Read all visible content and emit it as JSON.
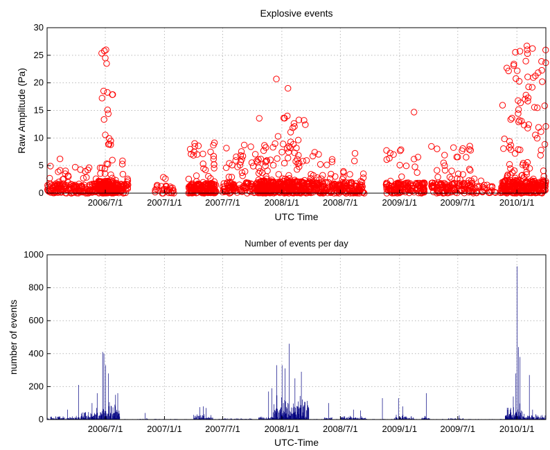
{
  "chart_data": [
    {
      "type": "scatter",
      "title": "Explosive events",
      "xlabel": "UTC Time",
      "ylabel": "Raw Amplitude (Pa)",
      "ylim": [
        0,
        30
      ],
      "yticks": [
        0,
        5,
        10,
        15,
        20,
        25,
        30
      ],
      "xlim": [
        "2006-01-01",
        "2010-04-01"
      ],
      "xticks": [
        "2006/7/1",
        "2007/1/1",
        "2007/7/1",
        "2008/1/1",
        "2008/7/1",
        "2009/1/1",
        "2009/7/1",
        "2010/1/1"
      ],
      "grid": true,
      "marker": "open-circle",
      "color": "#ff0000",
      "clusters": [
        {
          "from": "2006-01-01",
          "to": "2006-08-10",
          "n": 230,
          "max": 5,
          "tail": 1.8
        },
        {
          "from": "2006-06-10",
          "to": "2006-07-25",
          "n": 160,
          "max": 26,
          "tail": 2.2
        },
        {
          "from": "2006-08-01",
          "to": "2006-09-10",
          "n": 60,
          "max": 6,
          "tail": 1.7
        },
        {
          "from": "2006-12-01",
          "to": "2007-01-31",
          "n": 30,
          "max": 3.5,
          "tail": 1.5
        },
        {
          "from": "2007-03-15",
          "to": "2007-06-10",
          "n": 180,
          "max": 9.3,
          "tail": 1.8
        },
        {
          "from": "2007-07-01",
          "to": "2007-12-01",
          "n": 160,
          "max": 8.8,
          "tail": 2.0
        },
        {
          "from": "2007-10-20",
          "to": "2008-03-15",
          "n": 320,
          "max": 14,
          "tail": 2.2
        },
        {
          "from": "2008-03-15",
          "to": "2008-09-15",
          "n": 240,
          "max": 7.5,
          "tail": 2.0
        },
        {
          "from": "2008-11-20",
          "to": "2009-03-20",
          "n": 150,
          "max": 8.2,
          "tail": 1.9
        },
        {
          "from": "2009-04-10",
          "to": "2009-08-15",
          "n": 140,
          "max": 9.3,
          "tail": 1.9
        },
        {
          "from": "2009-08-15",
          "to": "2009-12-01",
          "n": 40,
          "max": 2.7,
          "tail": 1.5
        },
        {
          "from": "2009-11-15",
          "to": "2010-04-01",
          "n": 320,
          "max": 26.7,
          "tail": 2.3
        }
      ],
      "extra_points": [
        {
          "x": "2006-02-10",
          "y": 6.2
        },
        {
          "x": "2006-07-01",
          "y": 24.5
        },
        {
          "x": "2006-07-05",
          "y": 23.5
        },
        {
          "x": "2006-07-03",
          "y": 26.0
        },
        {
          "x": "2007-12-15",
          "y": 20.7
        },
        {
          "x": "2008-01-20",
          "y": 19.0
        },
        {
          "x": "2008-01-18",
          "y": 14.0
        },
        {
          "x": "2008-03-10",
          "y": 13.2
        },
        {
          "x": "2009-02-15",
          "y": 14.7
        },
        {
          "x": "2010-02-01",
          "y": 26.7
        },
        {
          "x": "2010-02-02",
          "y": 26.0
        },
        {
          "x": "2010-02-03",
          "y": 25.3
        },
        {
          "x": "2010-02-05",
          "y": 17.3
        },
        {
          "x": "2010-02-04",
          "y": 16.7
        }
      ]
    },
    {
      "type": "bar",
      "title": "Number of events per day",
      "xlabel": "UTC-Time",
      "ylabel": "number of events",
      "ylim": [
        0,
        1000
      ],
      "yticks": [
        0,
        200,
        400,
        600,
        800,
        1000
      ],
      "xlim": [
        "2006-01-01",
        "2010-04-01"
      ],
      "xticks": [
        "2006/7/1",
        "2007/1/1",
        "2007/7/1",
        "2008/1/1",
        "2008/7/1",
        "2009/1/1",
        "2009/7/1",
        "2010/1/1"
      ],
      "grid": true,
      "color": "#000080",
      "bursts": [
        {
          "from": "2006-01-01",
          "to": "2006-04-15",
          "base": 20,
          "spikes": [
            [
              "2006-03-05",
              60
            ],
            [
              "2006-04-08",
              210
            ]
          ]
        },
        {
          "from": "2006-04-15",
          "to": "2006-06-15",
          "base": 60,
          "spikes": [
            [
              "2006-05-20",
              100
            ],
            [
              "2006-06-05",
              160
            ]
          ]
        },
        {
          "from": "2006-06-15",
          "to": "2006-08-15",
          "base": 90,
          "spikes": [
            [
              "2006-06-22",
              410
            ],
            [
              "2006-06-26",
              400
            ],
            [
              "2006-07-01",
              330
            ],
            [
              "2006-07-10",
              280
            ],
            [
              "2006-08-01",
              150
            ],
            [
              "2006-08-08",
              160
            ]
          ]
        },
        {
          "from": "2006-10-25",
          "to": "2006-11-10",
          "base": 10,
          "spikes": [
            [
              "2006-11-01",
              40
            ]
          ]
        },
        {
          "from": "2007-04-01",
          "to": "2007-06-01",
          "base": 30,
          "spikes": [
            [
              "2007-04-20",
              75
            ],
            [
              "2007-05-01",
              80
            ],
            [
              "2007-05-10",
              70
            ]
          ]
        },
        {
          "from": "2007-07-01",
          "to": "2007-10-01",
          "base": 6,
          "spikes": []
        },
        {
          "from": "2007-10-20",
          "to": "2007-12-05",
          "base": 15,
          "spikes": [
            [
              "2007-11-20",
              170
            ],
            [
              "2007-11-30",
              190
            ]
          ]
        },
        {
          "from": "2007-12-05",
          "to": "2008-03-25",
          "base": 120,
          "spikes": [
            [
              "2007-12-15",
              330
            ],
            [
              "2008-01-01",
              330
            ],
            [
              "2008-01-10",
              310
            ],
            [
              "2008-01-23",
              460
            ],
            [
              "2008-02-10",
              250
            ],
            [
              "2008-03-01",
              290
            ]
          ]
        },
        {
          "from": "2008-05-10",
          "to": "2008-06-05",
          "base": 15,
          "spikes": [
            [
              "2008-05-25",
              100
            ]
          ]
        },
        {
          "from": "2008-07-01",
          "to": "2008-09-20",
          "base": 20,
          "spikes": [
            [
              "2008-08-10",
              60
            ],
            [
              "2008-09-01",
              55
            ]
          ]
        },
        {
          "from": "2008-11-01",
          "to": "2008-11-15",
          "base": 5,
          "spikes": [
            [
              "2008-11-08",
              130
            ]
          ]
        },
        {
          "from": "2008-12-15",
          "to": "2009-02-15",
          "base": 25,
          "spikes": [
            [
              "2008-12-28",
              130
            ],
            [
              "2009-01-10",
              80
            ]
          ]
        },
        {
          "from": "2009-03-10",
          "to": "2009-04-05",
          "base": 20,
          "spikes": [
            [
              "2009-03-25",
              160
            ]
          ]
        },
        {
          "from": "2009-06-01",
          "to": "2009-07-20",
          "base": 8,
          "spikes": [
            [
              "2009-07-05",
              25
            ]
          ]
        },
        {
          "from": "2009-11-25",
          "to": "2010-01-20",
          "base": 80,
          "spikes": [
            [
              "2009-12-20",
              140
            ],
            [
              "2009-12-28",
              280
            ],
            [
              "2010-01-01",
              930
            ],
            [
              "2010-01-05",
              440
            ],
            [
              "2010-01-10",
              380
            ]
          ]
        },
        {
          "from": "2010-01-20",
          "to": "2010-03-31",
          "base": 30,
          "spikes": [
            [
              "2010-02-08",
              270
            ],
            [
              "2010-02-18",
              60
            ]
          ]
        }
      ]
    }
  ]
}
